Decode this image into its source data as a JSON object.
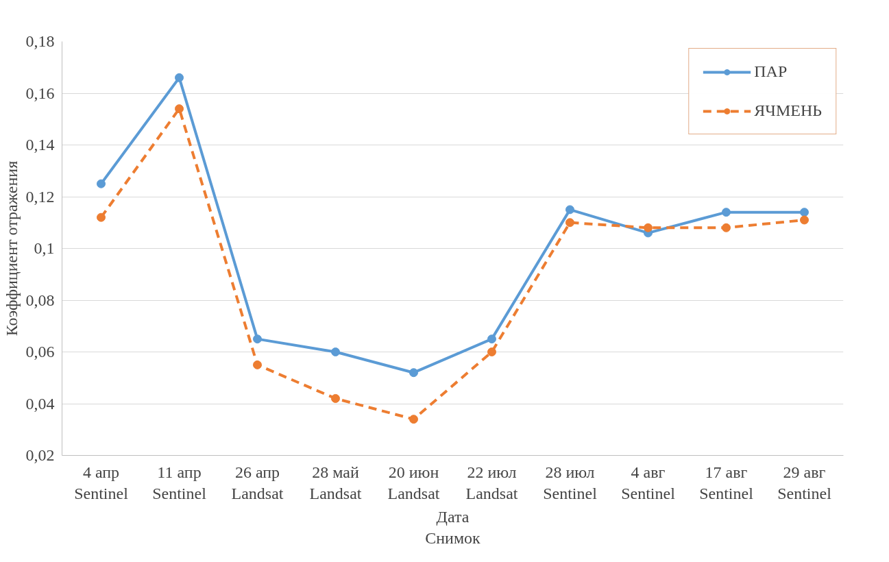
{
  "chart_data": {
    "type": "line",
    "xlabel": "Дата\nСнимок",
    "ylabel": "Коэффициент отражения",
    "categories": [
      "4 апр\nSentinel",
      "11 апр\nSentinel",
      "26 апр\nLandsat",
      "28 май\nLandsat",
      "20 июн\nLandsat",
      "22 июл\nLandsat",
      "28 июл\nSentinel",
      "4 авг\nSentinel",
      "17 авг\nSentinel",
      "29 авг\nSentinel"
    ],
    "series": [
      {
        "name": "ПАР",
        "color": "#5b9bd5",
        "line_style": "solid",
        "values": [
          0.125,
          0.166,
          0.065,
          0.06,
          0.052,
          0.065,
          0.115,
          0.106,
          0.114,
          0.114
        ]
      },
      {
        "name": "ЯЧМЕНЬ",
        "color": "#ed7d31",
        "line_style": "dashed",
        "values": [
          0.112,
          0.154,
          0.055,
          0.042,
          0.034,
          0.06,
          0.11,
          0.108,
          0.108,
          0.111
        ]
      }
    ],
    "ylim": [
      0.02,
      0.18
    ],
    "yticks": [
      {
        "value": 0.02,
        "label": "0,02"
      },
      {
        "value": 0.04,
        "label": "0,04"
      },
      {
        "value": 0.06,
        "label": "0,06"
      },
      {
        "value": 0.08,
        "label": "0,08"
      },
      {
        "value": 0.1,
        "label": "0,1"
      },
      {
        "value": 0.12,
        "label": "0,12"
      },
      {
        "value": 0.14,
        "label": "0,14"
      },
      {
        "value": 0.16,
        "label": "0,16"
      },
      {
        "value": 0.18,
        "label": "0,18"
      }
    ],
    "grid": "y",
    "legend": "top right",
    "marker": "circle"
  }
}
